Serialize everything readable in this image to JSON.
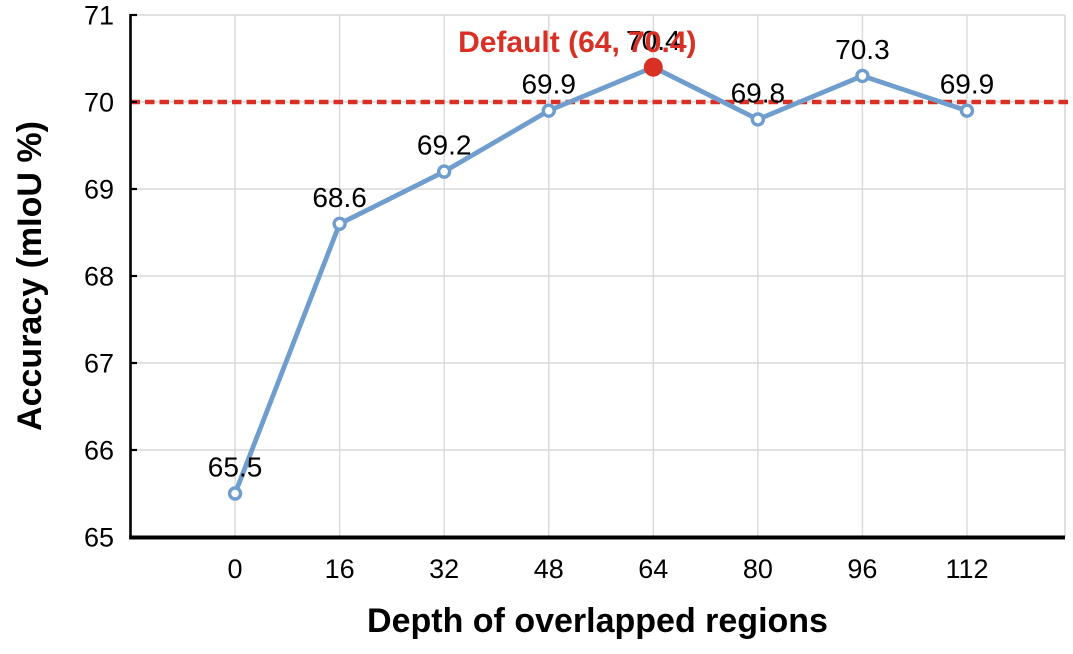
{
  "chart_data": {
    "type": "line",
    "title": "",
    "xlabel": "Depth of overlapped regions",
    "ylabel": "Accuracy (mIoU %)",
    "x": [
      0,
      16,
      32,
      48,
      64,
      80,
      96,
      112
    ],
    "values": [
      65.5,
      68.6,
      69.2,
      69.9,
      70.4,
      69.8,
      70.3,
      69.9
    ],
    "point_labels": [
      "65.5",
      "68.6",
      "69.2",
      "69.9",
      "70.4",
      "69.8",
      "70.3",
      "69.9"
    ],
    "default_point": {
      "x": 64,
      "y": 70.4,
      "label": "Default (64, 70.4)"
    },
    "reference_line": {
      "y": 70,
      "style": "dashed"
    },
    "xticks": [
      0,
      16,
      32,
      48,
      64,
      80,
      96,
      112
    ],
    "yticks": [
      65,
      66,
      67,
      68,
      69,
      70,
      71
    ],
    "xlim": [
      -16,
      127
    ],
    "ylim": [
      65,
      71
    ],
    "grid": true,
    "legend": false,
    "colors": {
      "line": "#6f9dce",
      "marker_fill": "#ffffff",
      "default_red": "#d93025",
      "grid": "#d9d9d9",
      "axis": "#000000",
      "text": "#000000"
    }
  }
}
